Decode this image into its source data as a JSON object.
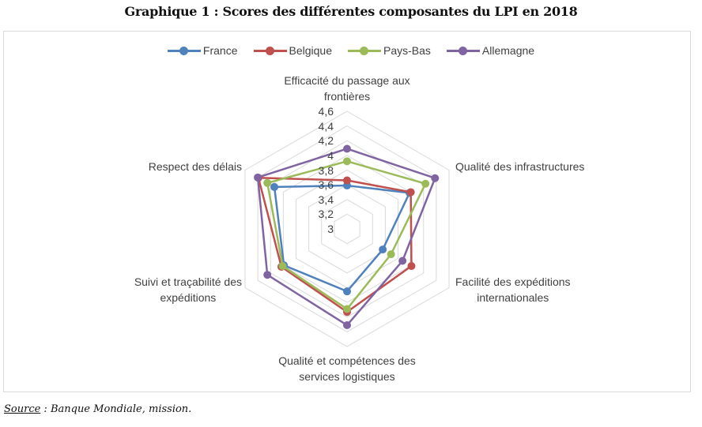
{
  "title": "Graphique 1 : Scores des différentes composantes du LPI en 2018",
  "source": {
    "label": "Source",
    "text": " : Banque Mondiale, mission."
  },
  "chart_data": {
    "type": "radar",
    "title": "Graphique 1 : Scores des différentes composantes du LPI en 2018",
    "categories": [
      "Efficacité du passage aux frontières",
      "Qualité des infrastructures",
      "Facilité des expéditions internationales",
      "Qualité et compétences des services logistiques",
      "Suivi et traçabilité des expéditions",
      "Respect des délais"
    ],
    "category_lines": [
      [
        "Efficacité du passage aux",
        "frontières"
      ],
      [
        "Qualité des infrastructures"
      ],
      [
        "Facilité des expéditions",
        "internationales"
      ],
      [
        "Qualité et compétences des",
        "services logistiques"
      ],
      [
        "Suivi et traçabilité des",
        "expéditions"
      ],
      [
        "Respect des délais"
      ]
    ],
    "axis_range": [
      3,
      4.6
    ],
    "ticks": [
      "3",
      "3,2",
      "3,4",
      "3,6",
      "3,8",
      "4",
      "4,2",
      "4,4",
      "4,6"
    ],
    "tick_values": [
      3,
      3.2,
      3.4,
      3.6,
      3.8,
      4.0,
      4.2,
      4.4,
      4.6
    ],
    "grid": true,
    "legend_position": "top",
    "series": [
      {
        "name": "France",
        "color": "#4F81BD",
        "values": [
          3.59,
          3.98,
          3.56,
          3.85,
          3.99,
          4.14
        ]
      },
      {
        "name": "Belgique",
        "color": "#C0504D",
        "values": [
          3.66,
          4.0,
          4.01,
          4.13,
          4.03,
          4.39
        ]
      },
      {
        "name": "Pays-Bas",
        "color": "#9BBB59",
        "values": [
          3.92,
          4.23,
          3.69,
          4.09,
          4.01,
          4.25
        ]
      },
      {
        "name": "Allemagne",
        "color": "#8064A2",
        "values": [
          4.09,
          4.38,
          3.87,
          4.31,
          4.25,
          4.4
        ]
      }
    ]
  }
}
